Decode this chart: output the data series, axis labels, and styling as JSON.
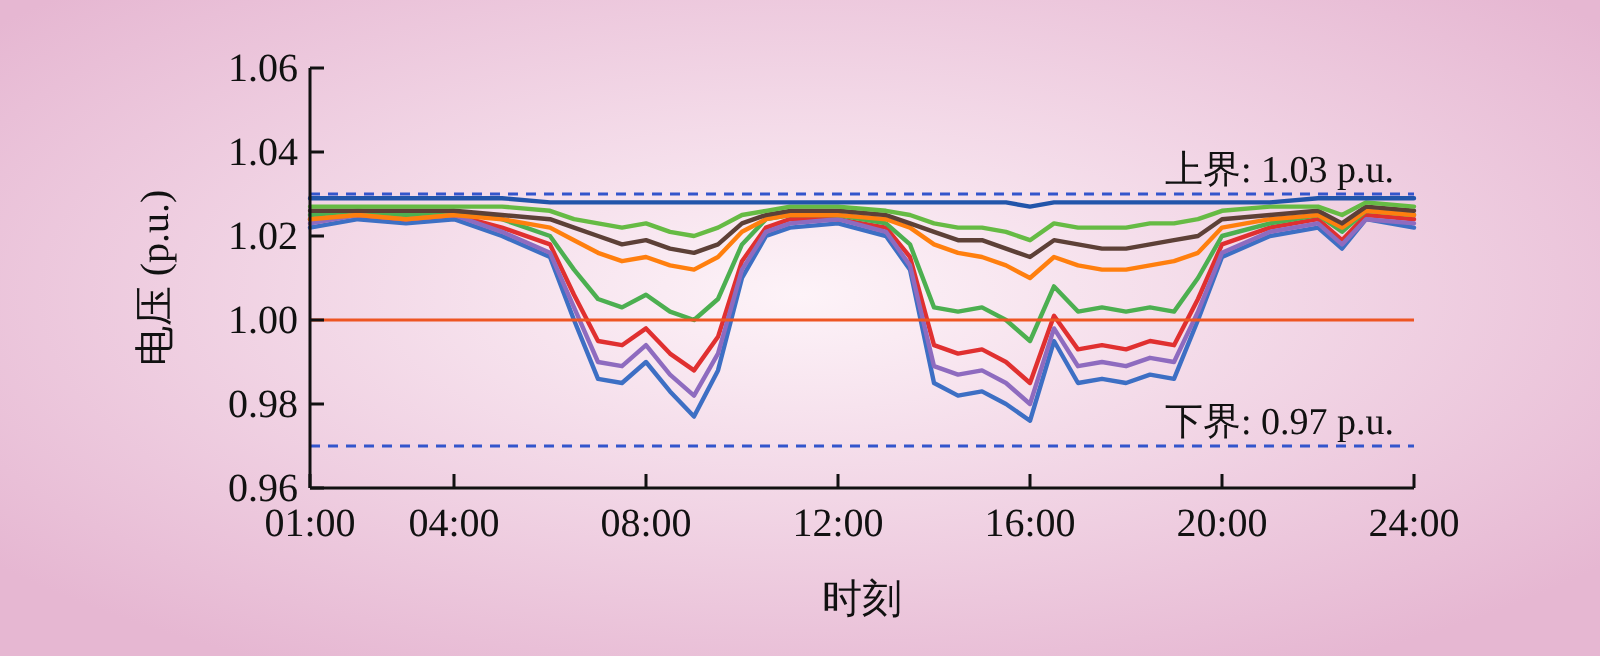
{
  "chart_data": {
    "type": "line",
    "xlabel": "时刻",
    "ylabel": "电压 (p.u.)",
    "x": [
      1,
      2,
      3,
      4,
      5,
      6,
      6.5,
      7,
      7.5,
      8,
      8.5,
      9,
      9.5,
      10,
      10.5,
      11,
      12,
      13,
      13.5,
      14,
      14.5,
      15,
      15.5,
      16,
      16.5,
      17,
      17.5,
      18,
      18.5,
      19,
      19.5,
      20,
      21,
      22,
      22.5,
      23,
      24
    ],
    "xlim": [
      1,
      24
    ],
    "xticks": [
      {
        "value": 1,
        "label": "01:00"
      },
      {
        "value": 4,
        "label": "04:00"
      },
      {
        "value": 8,
        "label": "08:00"
      },
      {
        "value": 12,
        "label": "12:00"
      },
      {
        "value": 16,
        "label": "16:00"
      },
      {
        "value": 20,
        "label": "20:00"
      },
      {
        "value": 24,
        "label": "24:00"
      }
    ],
    "ylim": [
      0.96,
      1.06
    ],
    "yticks": [
      {
        "value": 0.96,
        "label": "0.96"
      },
      {
        "value": 0.98,
        "label": "0.98"
      },
      {
        "value": 1,
        "label": "1.00"
      },
      {
        "value": 1.02,
        "label": "1.02"
      },
      {
        "value": 1.04,
        "label": "1.04"
      },
      {
        "value": 1.06,
        "label": "1.06"
      }
    ],
    "line_style": "solid",
    "marker": "none",
    "series": [
      {
        "color": "#3d6fc4",
        "values": [
          1.022,
          1.024,
          1.023,
          1.024,
          1.02,
          1.015,
          1.0,
          0.986,
          0.985,
          0.99,
          0.983,
          0.977,
          0.988,
          1.01,
          1.02,
          1.022,
          1.023,
          1.02,
          1.012,
          0.985,
          0.982,
          0.983,
          0.98,
          0.976,
          0.995,
          0.985,
          0.986,
          0.985,
          0.987,
          0.986,
          1.0,
          1.015,
          1.02,
          1.022,
          1.017,
          1.024,
          1.022
        ]
      },
      {
        "color": "#e03030",
        "values": [
          1.024,
          1.025,
          1.024,
          1.025,
          1.022,
          1.018,
          1.006,
          0.995,
          0.994,
          0.998,
          0.992,
          0.988,
          0.996,
          1.014,
          1.022,
          1.024,
          1.024,
          1.022,
          1.015,
          0.994,
          0.992,
          0.993,
          0.99,
          0.985,
          1.001,
          0.993,
          0.994,
          0.993,
          0.995,
          0.994,
          1.005,
          1.018,
          1.022,
          1.024,
          1.019,
          1.025,
          1.024
        ]
      },
      {
        "color": "#8e6bbf",
        "values": [
          1.023,
          1.025,
          1.024,
          1.025,
          1.021,
          1.016,
          1.003,
          0.99,
          0.989,
          0.994,
          0.987,
          0.982,
          0.992,
          1.012,
          1.021,
          1.023,
          1.024,
          1.021,
          1.013,
          0.989,
          0.987,
          0.988,
          0.985,
          0.98,
          0.998,
          0.989,
          0.99,
          0.989,
          0.991,
          0.99,
          1.002,
          1.016,
          1.021,
          1.023,
          1.018,
          1.024,
          1.023
        ]
      },
      {
        "color": "#4caf50",
        "values": [
          1.025,
          1.026,
          1.025,
          1.026,
          1.024,
          1.02,
          1.012,
          1.005,
          1.003,
          1.006,
          1.002,
          1.0,
          1.005,
          1.018,
          1.024,
          1.025,
          1.025,
          1.023,
          1.018,
          1.003,
          1.002,
          1.003,
          1.0,
          0.995,
          1.008,
          1.002,
          1.003,
          1.002,
          1.003,
          1.002,
          1.01,
          1.02,
          1.023,
          1.025,
          1.021,
          1.026,
          1.025
        ]
      },
      {
        "color": "#ff7f0e",
        "values": [
          1.024,
          1.025,
          1.024,
          1.025,
          1.024,
          1.022,
          1.019,
          1.016,
          1.014,
          1.015,
          1.013,
          1.012,
          1.015,
          1.021,
          1.024,
          1.025,
          1.025,
          1.024,
          1.022,
          1.018,
          1.016,
          1.015,
          1.013,
          1.01,
          1.015,
          1.013,
          1.012,
          1.012,
          1.013,
          1.014,
          1.016,
          1.022,
          1.024,
          1.025,
          1.022,
          1.026,
          1.025
        ]
      },
      {
        "color": "#5d4037",
        "values": [
          1.026,
          1.026,
          1.026,
          1.026,
          1.025,
          1.024,
          1.022,
          1.02,
          1.018,
          1.019,
          1.017,
          1.016,
          1.018,
          1.023,
          1.025,
          1.026,
          1.026,
          1.025,
          1.023,
          1.021,
          1.019,
          1.019,
          1.017,
          1.015,
          1.019,
          1.018,
          1.017,
          1.017,
          1.018,
          1.019,
          1.02,
          1.024,
          1.025,
          1.026,
          1.023,
          1.027,
          1.026
        ]
      },
      {
        "color": "#66bb44",
        "values": [
          1.027,
          1.027,
          1.027,
          1.027,
          1.027,
          1.026,
          1.024,
          1.023,
          1.022,
          1.023,
          1.021,
          1.02,
          1.022,
          1.025,
          1.026,
          1.027,
          1.027,
          1.026,
          1.025,
          1.023,
          1.022,
          1.022,
          1.021,
          1.019,
          1.023,
          1.022,
          1.022,
          1.022,
          1.023,
          1.023,
          1.024,
          1.026,
          1.027,
          1.027,
          1.025,
          1.028,
          1.027
        ]
      },
      {
        "color": "#2255aa",
        "values": [
          1.029,
          1.029,
          1.029,
          1.029,
          1.029,
          1.028,
          1.028,
          1.028,
          1.028,
          1.028,
          1.028,
          1.028,
          1.028,
          1.028,
          1.028,
          1.028,
          1.028,
          1.028,
          1.028,
          1.028,
          1.028,
          1.028,
          1.028,
          1.027,
          1.028,
          1.028,
          1.028,
          1.028,
          1.028,
          1.028,
          1.028,
          1.028,
          1.028,
          1.029,
          1.029,
          1.029,
          1.029
        ]
      }
    ],
    "ref_lines": [
      {
        "axis": "y",
        "value": 1.03,
        "label": "上界: 1.03 p.u.",
        "color": "#3355cc",
        "line_style": "dashed"
      },
      {
        "axis": "y",
        "value": 1,
        "label": null,
        "color": "#ee5522",
        "line_style": "solid"
      },
      {
        "axis": "y",
        "value": 0.97,
        "label": "下界: 0.97 p.u.",
        "color": "#3355cc",
        "line_style": "dashed"
      }
    ]
  }
}
